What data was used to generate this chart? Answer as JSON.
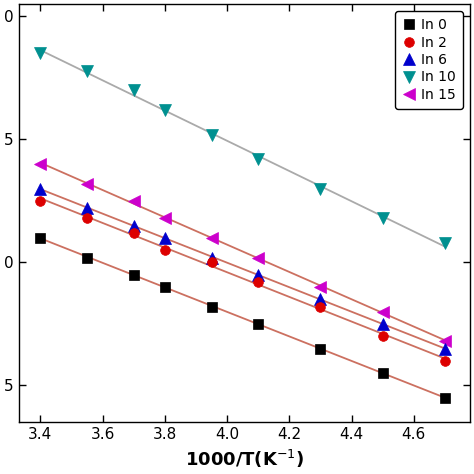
{
  "xlabel": "1000/T(K$^{-1}$)",
  "legend_labels": [
    "In 0",
    "In 2",
    "In 6",
    "In 10",
    "In 15"
  ],
  "series": {
    "In 0": {
      "x": [
        3.4,
        3.55,
        3.7,
        3.8,
        3.95,
        4.1,
        4.3,
        4.5,
        4.7
      ],
      "y": [
        -19.0,
        -19.8,
        -20.5,
        -21.0,
        -21.8,
        -22.5,
        -23.5,
        -24.5,
        -25.5
      ],
      "marker": "s",
      "color": "black"
    },
    "In 2": {
      "x": [
        3.4,
        3.55,
        3.7,
        3.8,
        3.95,
        4.1,
        4.3,
        4.5,
        4.7
      ],
      "y": [
        -17.5,
        -18.2,
        -18.8,
        -19.5,
        -20.0,
        -20.8,
        -21.8,
        -23.0,
        -24.0
      ],
      "marker": "o",
      "color": "#dd0000"
    },
    "In 6": {
      "x": [
        3.4,
        3.55,
        3.7,
        3.8,
        3.95,
        4.1,
        4.3,
        4.5,
        4.7
      ],
      "y": [
        -17.0,
        -17.8,
        -18.5,
        -19.0,
        -19.8,
        -20.5,
        -21.5,
        -22.5,
        -23.5
      ],
      "marker": "^",
      "color": "#0000cc"
    },
    "In 10": {
      "x": [
        3.4,
        3.55,
        3.7,
        3.8,
        3.95,
        4.1,
        4.3,
        4.5,
        4.7
      ],
      "y": [
        -11.5,
        -12.2,
        -13.0,
        -13.8,
        -14.8,
        -15.8,
        -17.0,
        -18.2,
        -19.2
      ],
      "marker": "v",
      "color": "#009090"
    },
    "In 15": {
      "x": [
        3.4,
        3.55,
        3.7,
        3.8,
        3.95,
        4.1,
        4.3,
        4.5,
        4.7
      ],
      "y": [
        -16.0,
        -16.8,
        -17.5,
        -18.2,
        -19.0,
        -19.8,
        -21.0,
        -22.0,
        -23.2
      ],
      "marker": "<",
      "color": "#cc00cc"
    }
  },
  "ylim": [
    -26.5,
    -9.5
  ],
  "ytick_step": 5,
  "xlim": [
    3.33,
    4.78
  ],
  "xticks": [
    3.4,
    3.6,
    3.8,
    4.0,
    4.2,
    4.4,
    4.6
  ],
  "line_color_normal": "#cc7060",
  "line_color_In10": "#aaaaaa",
  "figsize": [
    4.74,
    4.74
  ],
  "dpi": 100
}
